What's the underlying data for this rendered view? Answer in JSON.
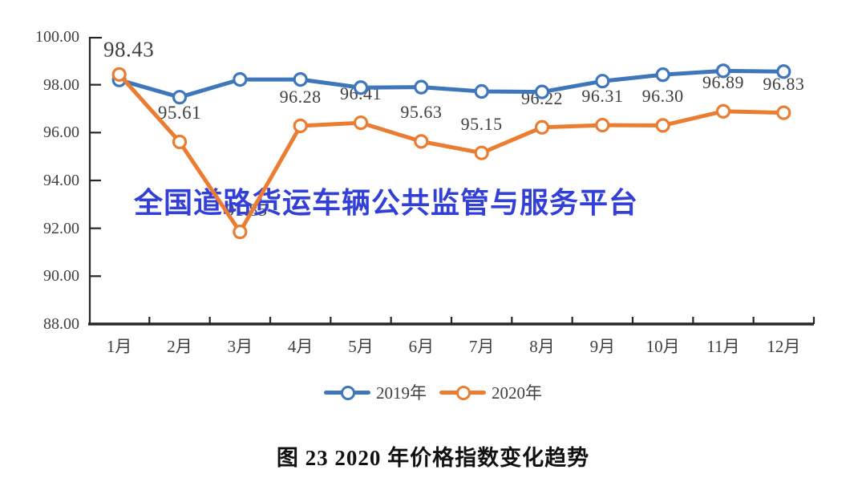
{
  "watermark": {
    "text": "全国道路货运车辆公共监管与服务平台",
    "color": "#3340d8"
  },
  "caption": "图 23 2020 年价格指数变化趋势",
  "legend": {
    "items": [
      {
        "label": "2019年",
        "color": "#3d76bb"
      },
      {
        "label": "2020年",
        "color": "#ea7d31"
      }
    ]
  },
  "chart_data": {
    "type": "line",
    "title": "图 23 2020 年价格指数变化趋势",
    "xlabel": "",
    "ylabel": "",
    "categories": [
      "1月",
      "2月",
      "3月",
      "4月",
      "5月",
      "6月",
      "7月",
      "8月",
      "9月",
      "10月",
      "11月",
      "12月"
    ],
    "y_axis": {
      "min": 88,
      "max": 100,
      "tick_step": 2,
      "tick_labels": [
        "100.00",
        "98.00",
        "96.00",
        "94.00",
        "92.00",
        "90.00",
        "88.00"
      ]
    },
    "grid": false,
    "marker": "open-circle",
    "legend_position": "bottom",
    "series": [
      {
        "name": "2019年",
        "color": "#3d76bb",
        "values": [
          98.2,
          97.48,
          98.22,
          98.22,
          97.88,
          97.9,
          97.72,
          97.7,
          98.15,
          98.42,
          98.58,
          98.55
        ]
      },
      {
        "name": "2020年",
        "color": "#ea7d31",
        "values": [
          98.43,
          95.61,
          91.85,
          96.28,
          96.41,
          95.63,
          95.15,
          96.22,
          96.31,
          96.3,
          96.89,
          96.83
        ],
        "data_labels": [
          "98.43",
          "95.61",
          "91.85",
          "96.28",
          "96.41",
          "95.63",
          "95.15",
          "96.22",
          "96.31",
          "96.30",
          "96.89",
          "96.83"
        ]
      }
    ],
    "axis_color": "#262626",
    "label_color": "#3f3f3f"
  }
}
